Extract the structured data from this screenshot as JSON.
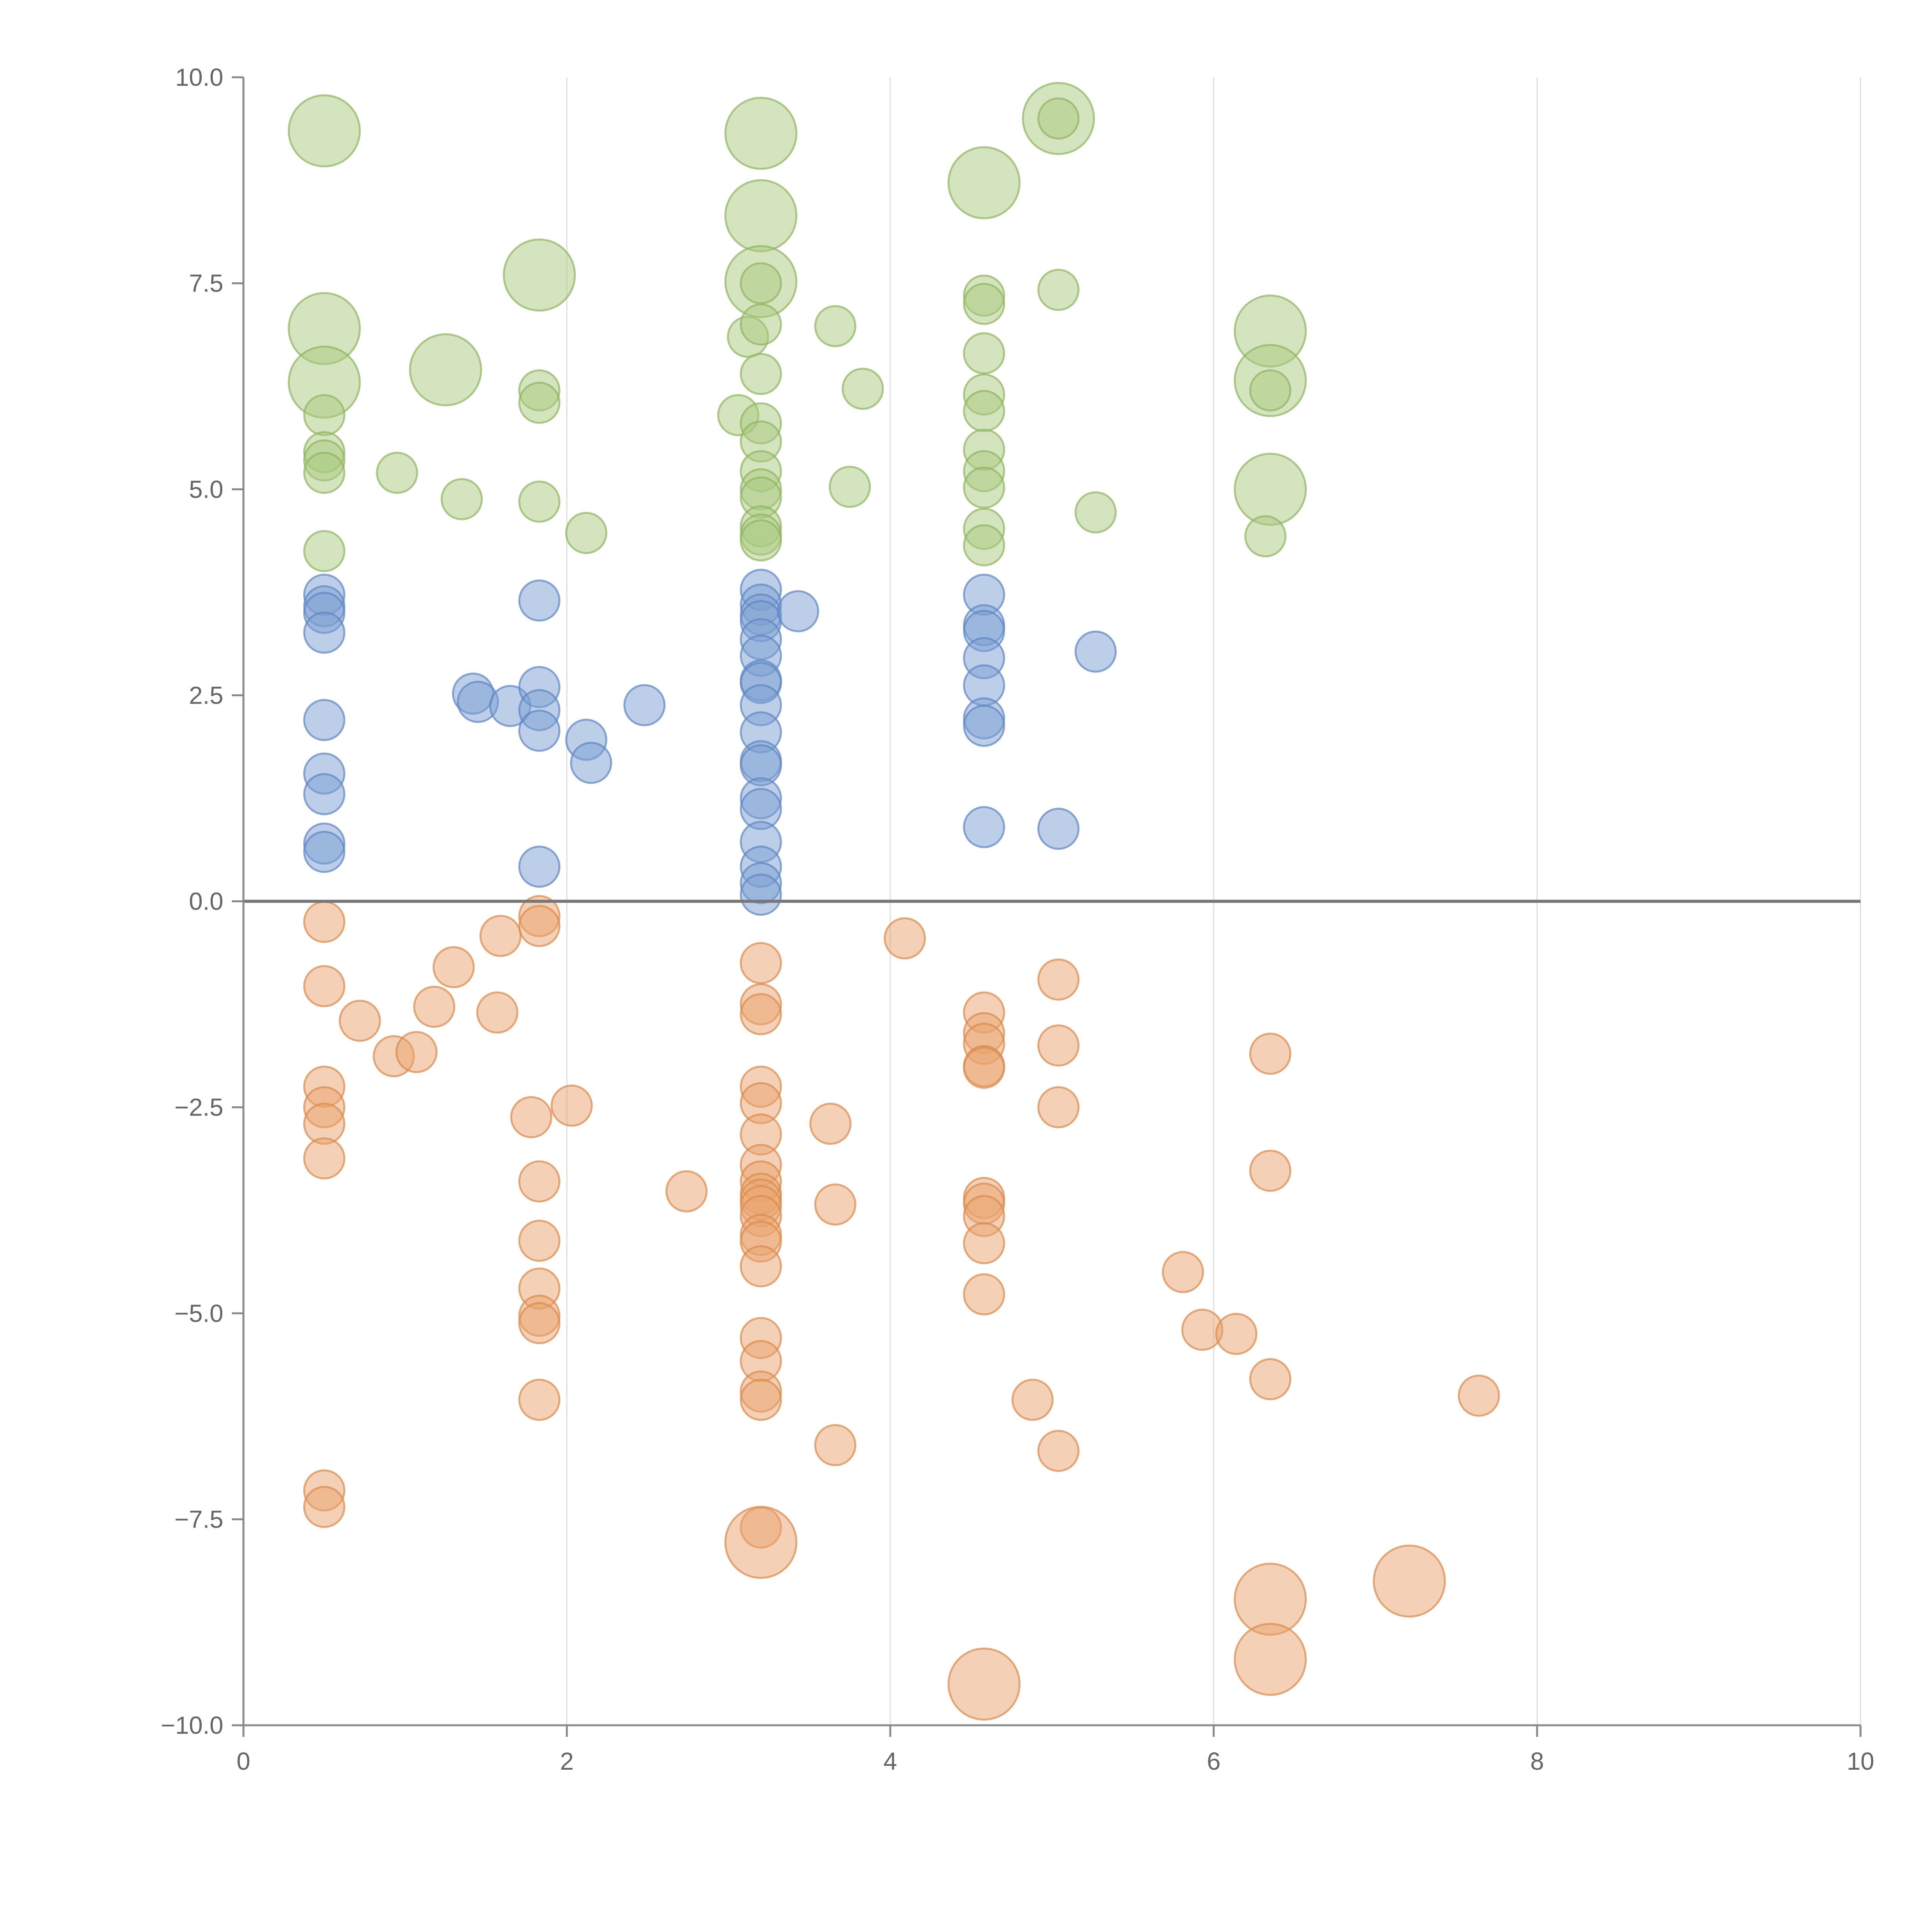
{
  "chart_data": {
    "type": "scatter",
    "title": "",
    "xlabel": "",
    "ylabel": "",
    "xlim": [
      0,
      10
    ],
    "ylim": [
      -10,
      10
    ],
    "xticks": [
      0,
      2,
      4,
      6,
      8,
      10
    ],
    "xtick_labels": [
      "0",
      "2",
      "4",
      "6",
      "8",
      "10"
    ],
    "yticks": [
      10,
      7.5,
      5,
      2.5,
      0,
      -2.5,
      -5,
      -7.5,
      -10
    ],
    "ytick_labels": [
      "10.0",
      "7.5",
      "5.0",
      "2.5",
      "0.0",
      "−2.5",
      "−5.0",
      "−7.5",
      "−10.0"
    ],
    "grid": "vertical",
    "colors": {
      "green_fill": "#a9c97f",
      "green_stroke": "#8fb35f",
      "blue_fill": "#7b9fd1",
      "blue_stroke": "#5c85c2",
      "orange_fill": "#e9a46e",
      "orange_stroke": "#d98a4c",
      "axis": "#888888",
      "grid": "#dddddd",
      "zero_line": "#777777"
    },
    "series": [
      {
        "name": "green",
        "points": [
          [
            0.5,
            9.35,
            3
          ],
          [
            0.5,
            6.95,
            3
          ],
          [
            0.5,
            6.3,
            3
          ],
          [
            0.5,
            5.9,
            1
          ],
          [
            0.5,
            5.45,
            1
          ],
          [
            0.5,
            5.35,
            1
          ],
          [
            0.5,
            5.2,
            1
          ],
          [
            0.5,
            4.25,
            1
          ],
          [
            0.95,
            5.2,
            1
          ],
          [
            1.25,
            6.45,
            3
          ],
          [
            1.35,
            4.88,
            1
          ],
          [
            1.83,
            7.6,
            3
          ],
          [
            1.83,
            6.2,
            1
          ],
          [
            1.83,
            6.05,
            1
          ],
          [
            1.83,
            4.85,
            1
          ],
          [
            2.12,
            4.47,
            1
          ],
          [
            3.06,
            5.9,
            1
          ],
          [
            3.12,
            6.85,
            1
          ],
          [
            3.2,
            9.32,
            3
          ],
          [
            3.2,
            8.32,
            3
          ],
          [
            3.2,
            7.52,
            3
          ],
          [
            3.2,
            7.5,
            1
          ],
          [
            3.2,
            7.0,
            1
          ],
          [
            3.2,
            6.4,
            1
          ],
          [
            3.2,
            5.8,
            1
          ],
          [
            3.2,
            5.58,
            1
          ],
          [
            3.2,
            5.22,
            1
          ],
          [
            3.2,
            5.0,
            1
          ],
          [
            3.2,
            4.9,
            1
          ],
          [
            3.2,
            4.55,
            1
          ],
          [
            3.2,
            4.45,
            1
          ],
          [
            3.2,
            4.38,
            1
          ],
          [
            3.66,
            6.98,
            1
          ],
          [
            3.75,
            5.03,
            1
          ],
          [
            3.83,
            6.22,
            1
          ],
          [
            4.58,
            8.72,
            3
          ],
          [
            4.58,
            7.35,
            1
          ],
          [
            4.58,
            7.25,
            1
          ],
          [
            4.58,
            6.65,
            1
          ],
          [
            4.58,
            6.15,
            1
          ],
          [
            4.58,
            5.95,
            1
          ],
          [
            4.58,
            5.48,
            1
          ],
          [
            4.58,
            5.22,
            1
          ],
          [
            4.58,
            5.02,
            1
          ],
          [
            4.58,
            4.52,
            1
          ],
          [
            4.58,
            4.32,
            1
          ],
          [
            5.04,
            9.5,
            3
          ],
          [
            5.04,
            9.5,
            1
          ],
          [
            5.04,
            7.42,
            1
          ],
          [
            5.27,
            4.72,
            1
          ],
          [
            6.35,
            6.92,
            3
          ],
          [
            6.35,
            6.32,
            3
          ],
          [
            6.35,
            6.2,
            1
          ],
          [
            6.35,
            5.0,
            3
          ],
          [
            6.32,
            4.43,
            1
          ]
        ]
      },
      {
        "name": "blue",
        "points": [
          [
            0.5,
            3.72,
            1
          ],
          [
            0.5,
            3.58,
            1
          ],
          [
            0.5,
            3.5,
            1
          ],
          [
            0.5,
            3.26,
            1
          ],
          [
            0.5,
            2.2,
            1
          ],
          [
            0.5,
            1.55,
            1
          ],
          [
            0.5,
            1.3,
            1
          ],
          [
            0.5,
            0.7,
            1
          ],
          [
            0.5,
            0.6,
            1
          ],
          [
            1.42,
            2.52,
            1
          ],
          [
            1.45,
            2.42,
            1
          ],
          [
            1.65,
            2.37,
            1
          ],
          [
            1.83,
            3.65,
            1
          ],
          [
            1.83,
            2.6,
            1
          ],
          [
            1.83,
            2.32,
            1
          ],
          [
            1.83,
            2.07,
            1
          ],
          [
            1.83,
            0.42,
            1
          ],
          [
            2.12,
            1.96,
            1
          ],
          [
            2.15,
            1.68,
            1
          ],
          [
            2.48,
            2.38,
            1
          ],
          [
            3.2,
            3.78,
            1
          ],
          [
            3.2,
            3.6,
            1
          ],
          [
            3.2,
            3.48,
            1
          ],
          [
            3.2,
            3.4,
            1
          ],
          [
            3.2,
            3.18,
            1
          ],
          [
            3.2,
            2.98,
            1
          ],
          [
            3.2,
            2.68,
            1
          ],
          [
            3.2,
            2.65,
            1
          ],
          [
            3.2,
            2.38,
            1
          ],
          [
            3.2,
            2.05,
            1
          ],
          [
            3.2,
            1.7,
            1
          ],
          [
            3.2,
            1.65,
            1
          ],
          [
            3.2,
            1.25,
            1
          ],
          [
            3.2,
            1.12,
            1
          ],
          [
            3.2,
            0.72,
            1
          ],
          [
            3.2,
            0.42,
            1
          ],
          [
            3.2,
            0.22,
            1
          ],
          [
            3.2,
            0.08,
            1
          ],
          [
            3.43,
            3.52,
            1
          ],
          [
            4.58,
            3.72,
            1
          ],
          [
            4.58,
            3.35,
            1
          ],
          [
            4.58,
            3.28,
            1
          ],
          [
            4.58,
            2.95,
            1
          ],
          [
            4.58,
            2.62,
            1
          ],
          [
            4.58,
            2.22,
            1
          ],
          [
            4.58,
            2.13,
            1
          ],
          [
            4.58,
            0.9,
            1
          ],
          [
            5.04,
            0.88,
            1
          ],
          [
            5.27,
            3.03,
            1
          ]
        ]
      },
      {
        "name": "orange",
        "points": [
          [
            0.5,
            -0.25,
            1
          ],
          [
            0.5,
            -1.03,
            1
          ],
          [
            0.5,
            -2.25,
            1
          ],
          [
            0.5,
            -2.5,
            1
          ],
          [
            0.5,
            -2.7,
            1
          ],
          [
            0.5,
            -3.12,
            1
          ],
          [
            0.5,
            -7.15,
            1
          ],
          [
            0.5,
            -7.35,
            1
          ],
          [
            0.72,
            -1.45,
            1
          ],
          [
            0.93,
            -1.88,
            1
          ],
          [
            1.07,
            -1.83,
            1
          ],
          [
            1.18,
            -1.28,
            1
          ],
          [
            1.3,
            -0.8,
            1
          ],
          [
            1.57,
            -1.35,
            1
          ],
          [
            1.59,
            -0.42,
            1
          ],
          [
            1.78,
            -2.62,
            1
          ],
          [
            1.83,
            -0.18,
            1
          ],
          [
            1.83,
            -0.3,
            1
          ],
          [
            1.83,
            -3.4,
            1
          ],
          [
            1.83,
            -4.12,
            1
          ],
          [
            1.83,
            -4.7,
            1
          ],
          [
            1.83,
            -5.03,
            1
          ],
          [
            1.83,
            -5.12,
            1
          ],
          [
            1.83,
            -6.05,
            1
          ],
          [
            2.03,
            -2.48,
            1
          ],
          [
            2.74,
            -3.52,
            1
          ],
          [
            3.2,
            -0.75,
            1
          ],
          [
            3.2,
            -1.25,
            1
          ],
          [
            3.2,
            -1.37,
            1
          ],
          [
            3.2,
            -2.25,
            1
          ],
          [
            3.2,
            -2.45,
            1
          ],
          [
            3.2,
            -2.83,
            1
          ],
          [
            3.2,
            -3.2,
            1
          ],
          [
            3.2,
            -3.4,
            1
          ],
          [
            3.2,
            -3.55,
            1
          ],
          [
            3.2,
            -3.62,
            1
          ],
          [
            3.2,
            -3.7,
            1
          ],
          [
            3.2,
            -3.82,
            1
          ],
          [
            3.2,
            -4.05,
            1
          ],
          [
            3.2,
            -4.13,
            1
          ],
          [
            3.2,
            -4.43,
            1
          ],
          [
            3.2,
            -5.3,
            1
          ],
          [
            3.2,
            -5.58,
            1
          ],
          [
            3.2,
            -5.95,
            1
          ],
          [
            3.2,
            -6.05,
            1
          ],
          [
            3.2,
            -7.6,
            1
          ],
          [
            3.2,
            -7.78,
            3
          ],
          [
            3.63,
            -2.7,
            1
          ],
          [
            3.66,
            -3.68,
            1
          ],
          [
            3.66,
            -6.6,
            1
          ],
          [
            4.09,
            -0.45,
            1
          ],
          [
            4.58,
            -1.35,
            1
          ],
          [
            4.58,
            -1.6,
            1
          ],
          [
            4.58,
            -1.73,
            1
          ],
          [
            4.58,
            -2.0,
            1
          ],
          [
            4.58,
            -2.02,
            1
          ],
          [
            4.58,
            -3.6,
            1
          ],
          [
            4.58,
            -3.67,
            1
          ],
          [
            4.58,
            -3.82,
            1
          ],
          [
            4.58,
            -4.15,
            1
          ],
          [
            4.58,
            -4.77,
            1
          ],
          [
            4.58,
            -9.5,
            3
          ],
          [
            4.88,
            -6.05,
            1
          ],
          [
            5.04,
            -0.95,
            1
          ],
          [
            5.04,
            -1.75,
            1
          ],
          [
            5.04,
            -2.5,
            1
          ],
          [
            5.04,
            -6.67,
            1
          ],
          [
            5.81,
            -4.5,
            1
          ],
          [
            5.93,
            -5.2,
            1
          ],
          [
            6.14,
            -5.25,
            1
          ],
          [
            6.35,
            -1.85,
            1
          ],
          [
            6.35,
            -3.27,
            1
          ],
          [
            6.35,
            -5.8,
            1
          ],
          [
            6.35,
            -8.47,
            3
          ],
          [
            6.35,
            -9.2,
            3
          ],
          [
            7.21,
            -8.25,
            3
          ],
          [
            7.64,
            -6.0,
            1
          ]
        ]
      }
    ]
  }
}
